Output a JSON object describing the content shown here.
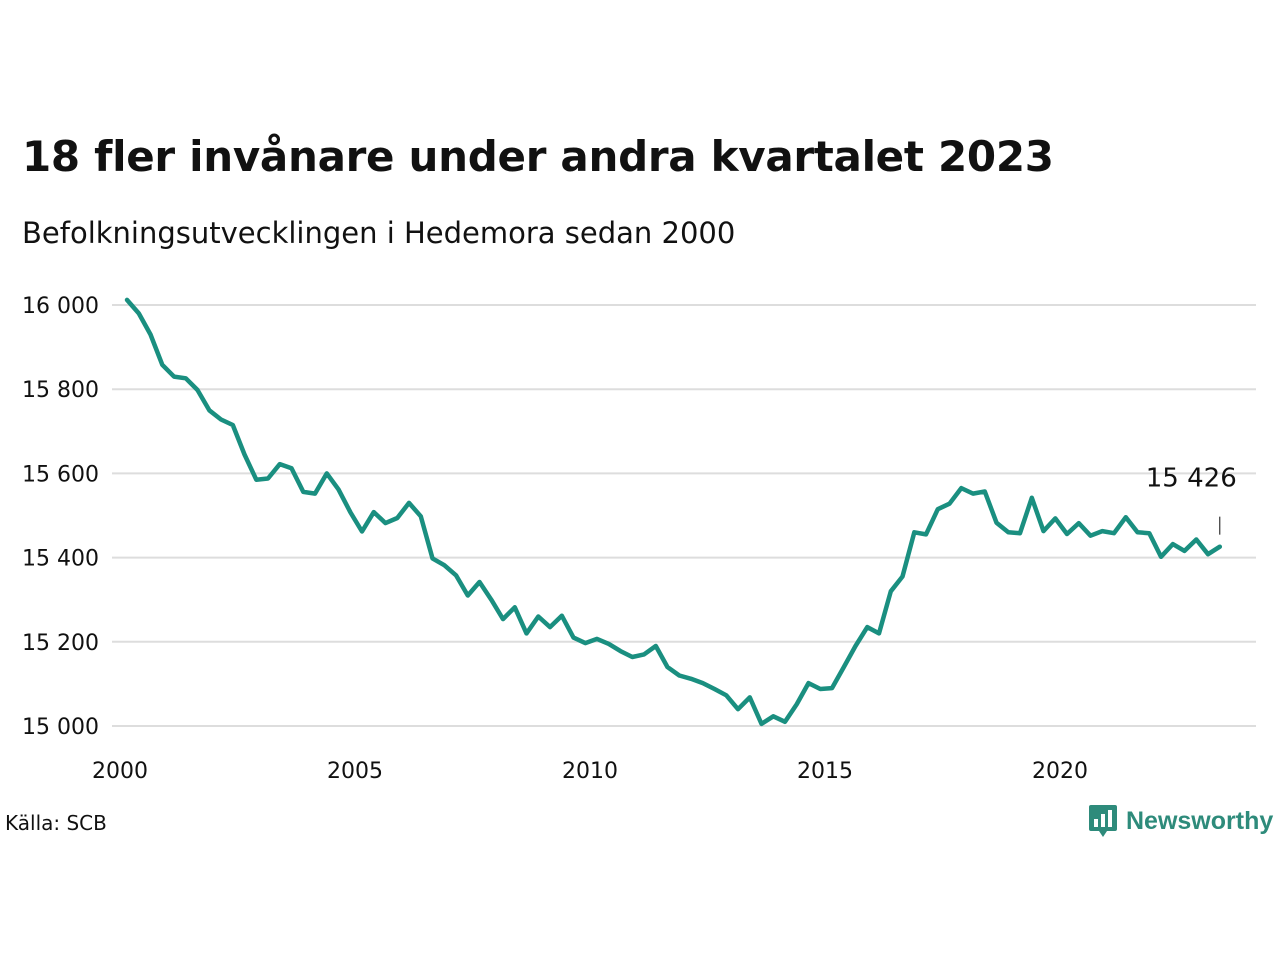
{
  "header": {
    "title": "18 fler invånare under andra kvartalet 2023",
    "subtitle": "Befolkningsutvecklingen i Hedemora sedan 2000"
  },
  "footer": {
    "source": "Källa: SCB",
    "brand": "Newsworthy",
    "brand_icon": "bar-chart-speech-bubble-icon"
  },
  "colors": {
    "line": "#1a8f80",
    "grid": "#dddddd",
    "brand": "#2e8b7b"
  },
  "chart_data": {
    "type": "line",
    "title": "18 fler invånare under andra kvartalet 2023",
    "subtitle": "Befolkningsutvecklingen i Hedemora sedan 2000",
    "xlabel": "",
    "ylabel": "",
    "x_start": 2000.0,
    "x_step": 0.25,
    "xlim": [
      2000,
      2024
    ],
    "ylim": [
      15000,
      16000
    ],
    "x_ticks": [
      2000,
      2005,
      2010,
      2015,
      2020
    ],
    "x_tick_labels": [
      "2000",
      "2005",
      "2010",
      "2015",
      "2020"
    ],
    "y_ticks": [
      15000,
      15200,
      15400,
      15600,
      15800,
      16000
    ],
    "y_tick_labels": [
      "15 000",
      "15 200",
      "15 400",
      "15 600",
      "15 800",
      "16 000"
    ],
    "grid": true,
    "legend": "none",
    "annotation": {
      "label": "15 426",
      "value": 15426
    },
    "series": [
      {
        "values": [
          16012,
          15980,
          15930,
          15858,
          15830,
          15826,
          15798,
          15750,
          15728,
          15715,
          15645,
          15585,
          15588,
          15622,
          15612,
          15556,
          15552,
          15600,
          15562,
          15508,
          15462,
          15508,
          15482,
          15494,
          15530,
          15498,
          15398,
          15382,
          15358,
          15310,
          15342,
          15300,
          15254,
          15282,
          15220,
          15260,
          15235,
          15262,
          15210,
          15197,
          15207,
          15195,
          15178,
          15164,
          15170,
          15190,
          15140,
          15120,
          15112,
          15102,
          15088,
          15073,
          15040,
          15068,
          15005,
          15023,
          15010,
          15052,
          15102,
          15088,
          15090,
          15140,
          15190,
          15235,
          15220,
          15320,
          15355,
          15460,
          15455,
          15515,
          15528,
          15565,
          15552,
          15557,
          15483,
          15460,
          15458,
          15542,
          15463,
          15493,
          15456,
          15482,
          15452,
          15463,
          15458,
          15496,
          15460,
          15458,
          15402,
          15432,
          15416,
          15443,
          15408,
          15426
        ]
      }
    ]
  }
}
